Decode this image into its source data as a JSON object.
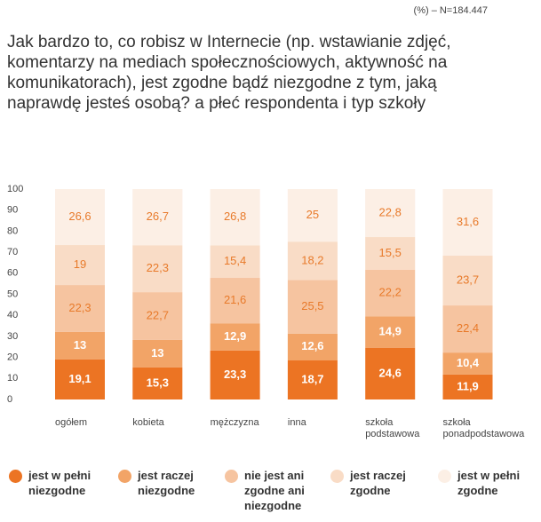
{
  "chart_data": {
    "type": "stacked_bar",
    "note": "(%) – N=184.447",
    "title": "Jak bardzo to, co robisz w Internecie (np. wstawianie zdjęć, komentarzy na mediach społecznościowych, aktywność na komunikatorach), jest zgodne bądź niezgodne z tym, jaką naprawdę jesteś osobą? a płeć respondenta i typ szkoły",
    "categories": [
      "ogółem",
      "kobieta",
      "mężczyzna",
      "inna",
      "szkoła podstawowa",
      "szkoła ponadpodstawowa"
    ],
    "series": [
      {
        "name": "jest w pełni niezgodne",
        "color": "#ec7423",
        "values": [
          19.1,
          15.3,
          23.3,
          18.7,
          24.6,
          11.9
        ],
        "value_labels": [
          "19,1",
          "15,3",
          "23,3",
          "18,7",
          "24,6",
          "11,9"
        ]
      },
      {
        "name": "jest raczej niezgodne",
        "color": "#f2a467",
        "values": [
          13,
          13,
          12.9,
          12.6,
          14.9,
          10.4
        ],
        "value_labels": [
          "13",
          "13",
          "12,9",
          "12,6",
          "14,9",
          "10,4"
        ]
      },
      {
        "name": "nie jest ani zgodne ani niezgodne",
        "color": "#f6c4a0",
        "values": [
          22.3,
          22.7,
          21.6,
          25.5,
          22.2,
          22.4
        ],
        "value_labels": [
          "22,3",
          "22,7",
          "21,6",
          "25,5",
          "22,2",
          "22,4"
        ]
      },
      {
        "name": "jest raczej zgodne",
        "color": "#f9dcc6",
        "values": [
          19,
          22.3,
          15.4,
          18.2,
          15.5,
          23.7
        ],
        "value_labels": [
          "19",
          "22,3",
          "15,4",
          "18,2",
          "15,5",
          "23,7"
        ]
      },
      {
        "name": "jest w pełni zgodne",
        "color": "#fcefe5",
        "values": [
          26.6,
          26.7,
          26.8,
          25,
          22.8,
          31.6
        ],
        "value_labels": [
          "26,6",
          "26,7",
          "26,8",
          "25",
          "22,8",
          "31,6"
        ]
      }
    ],
    "ylim": [
      0,
      100
    ],
    "yticks": [
      0,
      10,
      20,
      30,
      40,
      50,
      60,
      70,
      80,
      90,
      100
    ],
    "grid": false
  }
}
